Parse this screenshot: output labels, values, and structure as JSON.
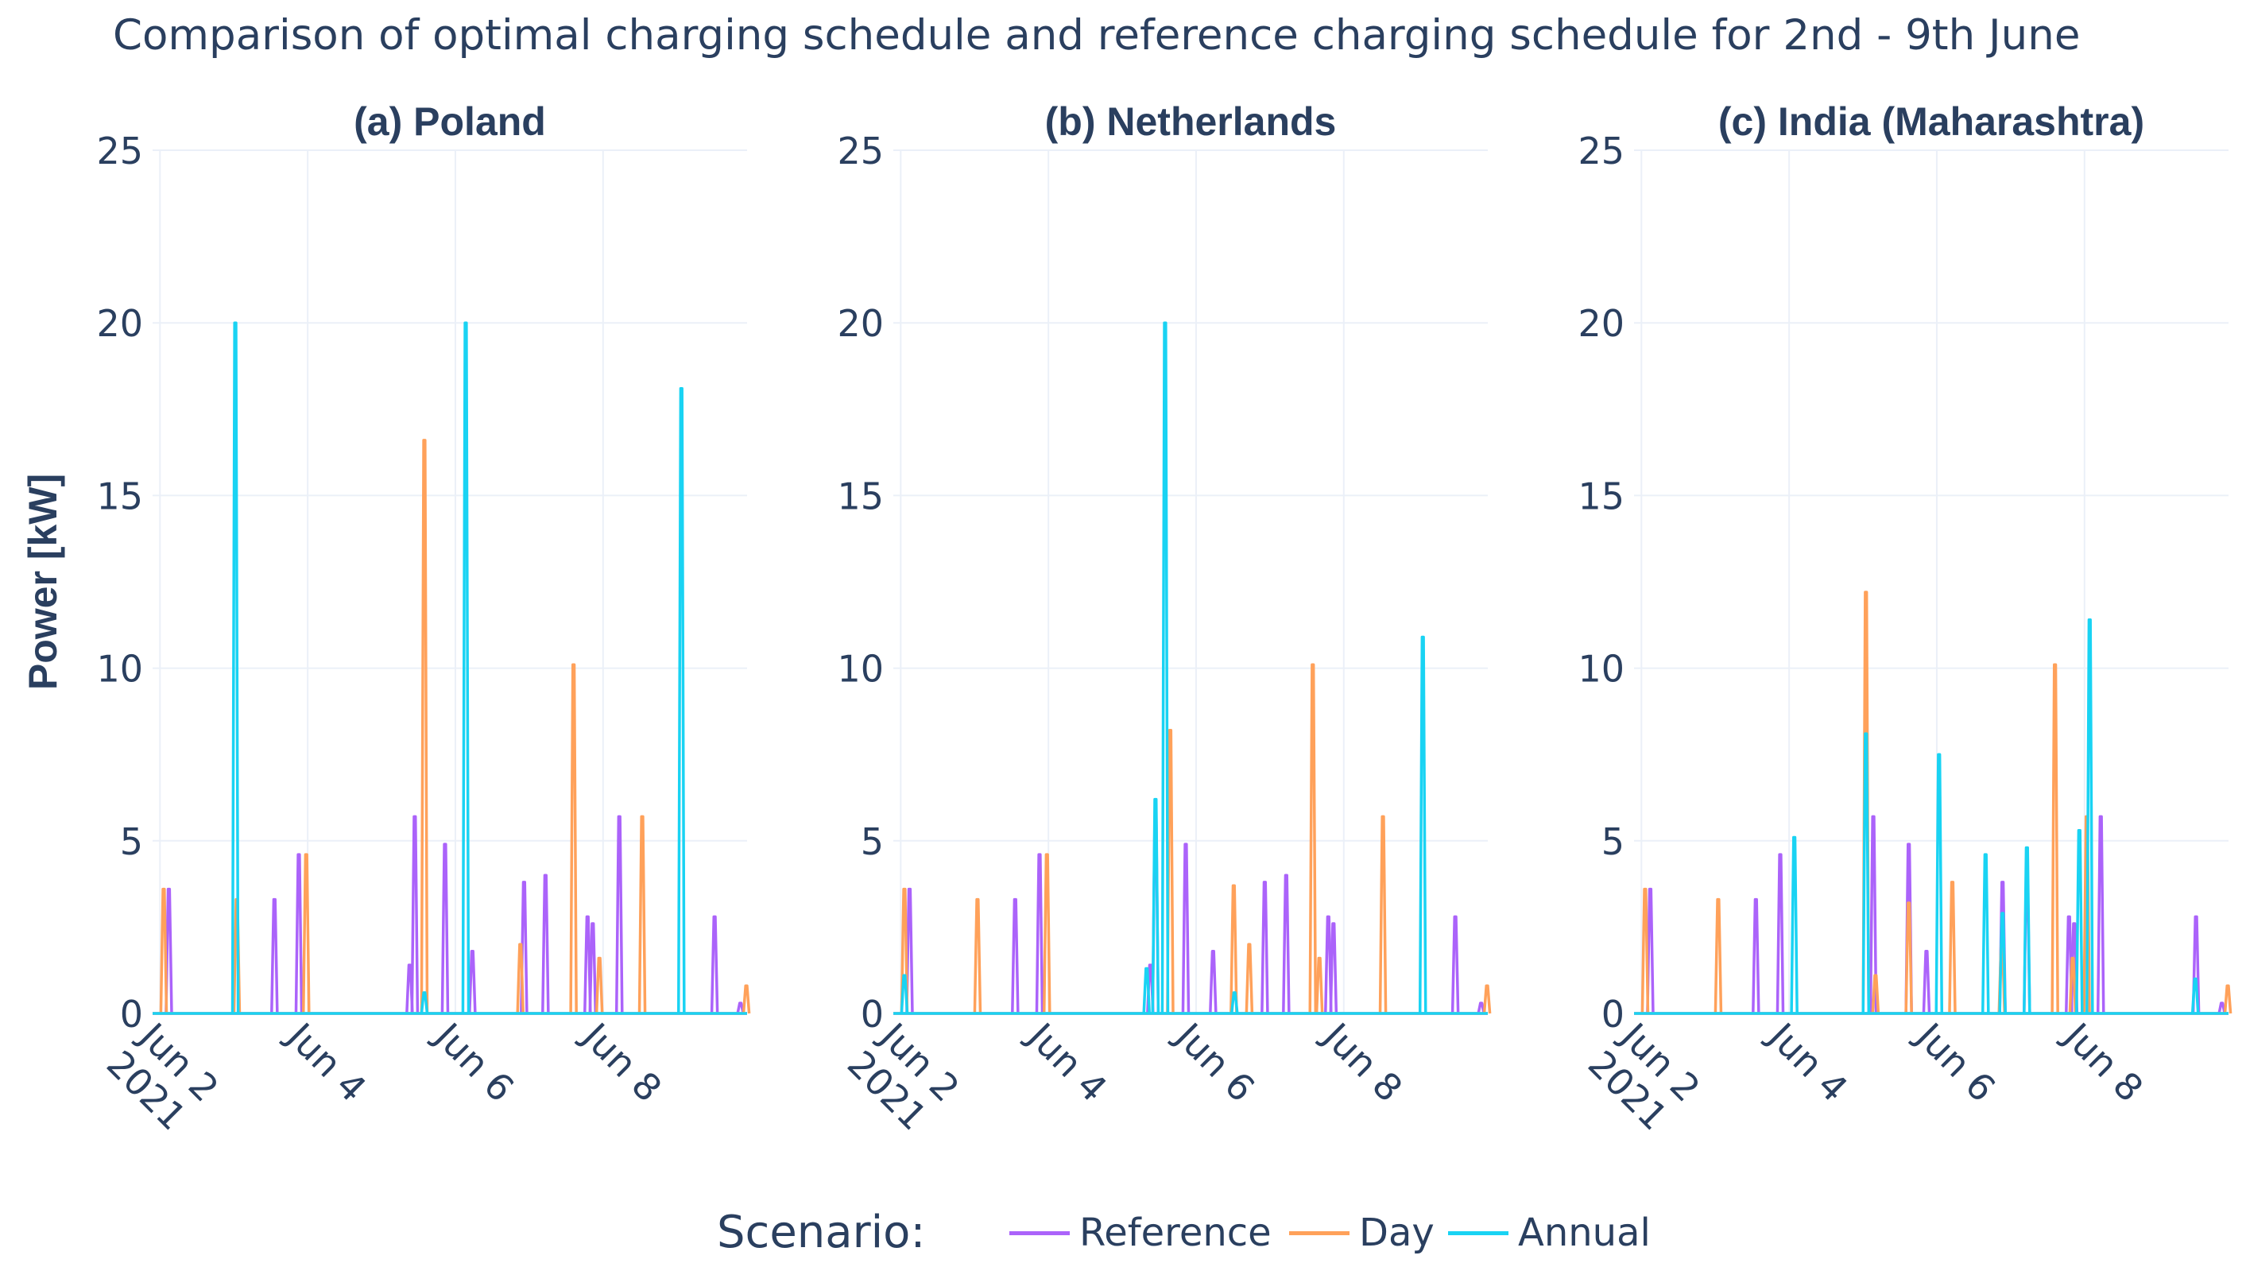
{
  "title": "Comparison of optimal charging schedule and reference charging schedule for 2nd - 9th June",
  "ylabel": "Power [kW]",
  "legend": {
    "title": "Scenario:",
    "items": [
      {
        "name": "Reference",
        "color": "#ab63fa"
      },
      {
        "name": "Day",
        "color": "#ffa15a"
      },
      {
        "name": "Annual",
        "color": "#19d3f3"
      }
    ]
  },
  "chart_data": [
    {
      "type": "line",
      "title": "(a) Poland",
      "ylim": [
        0,
        25
      ],
      "xlim_days": [
        1.9,
        9.95
      ],
      "yticks": [
        "0",
        "5",
        "10",
        "15",
        "20",
        "25"
      ],
      "xticks": [
        {
          "day": 2,
          "label1": "Jun 2",
          "label2": "2021"
        },
        {
          "day": 4,
          "label1": "Jun 4",
          "label2": ""
        },
        {
          "day": 6,
          "label1": "Jun 6",
          "label2": ""
        },
        {
          "day": 8,
          "label1": "Jun 8",
          "label2": ""
        }
      ],
      "series": [
        {
          "name": "Reference",
          "spikes": [
            [
              2.12,
              3.6
            ],
            [
              3.55,
              3.3
            ],
            [
              3.88,
              4.6
            ],
            [
              5.38,
              1.4
            ],
            [
              5.45,
              5.7
            ],
            [
              5.86,
              4.9
            ],
            [
              6.23,
              1.8
            ],
            [
              6.93,
              3.8
            ],
            [
              7.22,
              4.0
            ],
            [
              7.79,
              2.8
            ],
            [
              7.86,
              2.6
            ],
            [
              8.22,
              5.7
            ],
            [
              9.51,
              2.8
            ],
            [
              9.86,
              0.3
            ]
          ]
        },
        {
          "name": "Day",
          "spikes": [
            [
              2.05,
              3.6
            ],
            [
              3.04,
              3.3
            ],
            [
              3.98,
              4.6
            ],
            [
              5.58,
              16.6
            ],
            [
              6.88,
              2.0
            ],
            [
              7.6,
              10.1
            ],
            [
              7.95,
              1.6
            ],
            [
              8.53,
              5.7
            ],
            [
              9.94,
              0.8
            ]
          ]
        },
        {
          "name": "Annual",
          "spikes": [
            [
              3.02,
              20.0
            ],
            [
              5.58,
              0.6
            ],
            [
              6.14,
              20.0
            ],
            [
              9.06,
              18.1
            ]
          ]
        }
      ]
    },
    {
      "type": "line",
      "title": "(b) Netherlands",
      "ylim": [
        0,
        25
      ],
      "xlim_days": [
        1.9,
        9.95
      ],
      "yticks": [
        "0",
        "5",
        "10",
        "15",
        "20",
        "25"
      ],
      "xticks": [
        {
          "day": 2,
          "label1": "Jun 2",
          "label2": "2021"
        },
        {
          "day": 4,
          "label1": "Jun 4",
          "label2": ""
        },
        {
          "day": 6,
          "label1": "Jun 6",
          "label2": ""
        },
        {
          "day": 8,
          "label1": "Jun 8",
          "label2": ""
        }
      ],
      "series": [
        {
          "name": "Reference",
          "spikes": [
            [
              2.12,
              3.6
            ],
            [
              3.55,
              3.3
            ],
            [
              3.88,
              4.6
            ],
            [
              5.38,
              1.4
            ],
            [
              5.45,
              5.7
            ],
            [
              5.86,
              4.9
            ],
            [
              6.23,
              1.8
            ],
            [
              6.93,
              3.8
            ],
            [
              7.22,
              4.0
            ],
            [
              7.79,
              2.8
            ],
            [
              7.86,
              2.6
            ],
            [
              9.51,
              2.8
            ],
            [
              9.86,
              0.3
            ]
          ]
        },
        {
          "name": "Day",
          "spikes": [
            [
              2.05,
              3.6
            ],
            [
              3.04,
              3.3
            ],
            [
              3.98,
              4.6
            ],
            [
              5.65,
              8.2
            ],
            [
              6.51,
              3.7
            ],
            [
              6.72,
              2.0
            ],
            [
              7.58,
              10.1
            ],
            [
              7.67,
              1.6
            ],
            [
              8.53,
              5.7
            ],
            [
              9.94,
              0.8
            ]
          ]
        },
        {
          "name": "Annual",
          "spikes": [
            [
              2.05,
              1.1
            ],
            [
              5.33,
              1.3
            ],
            [
              5.45,
              6.2
            ],
            [
              5.58,
              20.0
            ],
            [
              6.52,
              0.6
            ],
            [
              9.07,
              10.9
            ]
          ]
        }
      ]
    },
    {
      "type": "line",
      "title": "(c) India (Maharashtra)",
      "ylim": [
        0,
        25
      ],
      "xlim_days": [
        1.9,
        9.95
      ],
      "yticks": [
        "0",
        "5",
        "10",
        "15",
        "20",
        "25"
      ],
      "xticks": [
        {
          "day": 2,
          "label1": "Jun 2",
          "label2": "2021"
        },
        {
          "day": 4,
          "label1": "Jun 4",
          "label2": ""
        },
        {
          "day": 6,
          "label1": "Jun 6",
          "label2": ""
        },
        {
          "day": 8,
          "label1": "Jun 8",
          "label2": ""
        }
      ],
      "series": [
        {
          "name": "Reference",
          "spikes": [
            [
              2.12,
              3.6
            ],
            [
              3.55,
              3.3
            ],
            [
              3.88,
              4.6
            ],
            [
              5.14,
              5.7
            ],
            [
              5.62,
              4.9
            ],
            [
              5.86,
              1.8
            ],
            [
              6.89,
              3.8
            ],
            [
              7.22,
              4.0
            ],
            [
              7.79,
              2.8
            ],
            [
              7.86,
              2.6
            ],
            [
              8.22,
              5.7
            ],
            [
              9.51,
              2.8
            ],
            [
              9.86,
              0.3
            ]
          ]
        },
        {
          "name": "Day",
          "spikes": [
            [
              2.05,
              3.6
            ],
            [
              3.04,
              3.3
            ],
            [
              5.04,
              12.2
            ],
            [
              5.17,
              1.1
            ],
            [
              5.62,
              3.2
            ],
            [
              6.21,
              3.8
            ],
            [
              6.88,
              2.0
            ],
            [
              7.6,
              10.1
            ],
            [
              7.84,
              1.6
            ],
            [
              8.03,
              5.7
            ],
            [
              9.94,
              0.8
            ]
          ]
        },
        {
          "name": "Annual",
          "spikes": [
            [
              4.07,
              5.1
            ],
            [
              5.04,
              8.1
            ],
            [
              6.03,
              7.5
            ],
            [
              6.66,
              4.6
            ],
            [
              6.89,
              2.9
            ],
            [
              7.22,
              4.8
            ],
            [
              7.93,
              5.3
            ],
            [
              8.07,
              11.4
            ],
            [
              9.5,
              1.0
            ]
          ]
        }
      ]
    }
  ]
}
